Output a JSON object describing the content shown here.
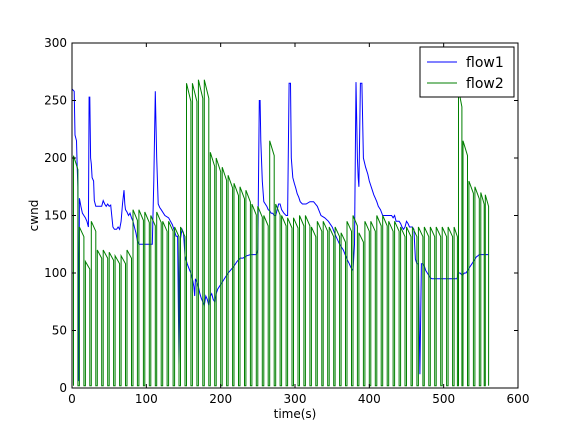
{
  "chart_data": {
    "type": "line",
    "title": "",
    "xlabel": "time(s)",
    "ylabel": "cwnd",
    "xlim": [
      0,
      600
    ],
    "ylim": [
      0,
      300
    ],
    "xticks": [
      0,
      100,
      200,
      300,
      400,
      500,
      600
    ],
    "yticks": [
      0,
      50,
      100,
      150,
      200,
      250,
      300
    ],
    "grid": false,
    "legend_position": "top-right",
    "series": [
      {
        "name": "flow1",
        "color": "#0000ff",
        "points": [
          [
            0,
            260
          ],
          [
            3,
            258
          ],
          [
            4,
            220
          ],
          [
            6,
            215
          ],
          [
            7,
            192
          ],
          [
            8,
            175
          ],
          [
            9,
            6
          ],
          [
            10,
            165
          ],
          [
            12,
            158
          ],
          [
            14,
            152
          ],
          [
            16,
            150
          ],
          [
            18,
            148
          ],
          [
            20,
            145
          ],
          [
            22,
            140
          ],
          [
            23,
            253
          ],
          [
            24,
            253
          ],
          [
            25,
            200
          ],
          [
            26,
            195
          ],
          [
            27,
            183
          ],
          [
            29,
            180
          ],
          [
            30,
            163
          ],
          [
            32,
            158
          ],
          [
            35,
            158
          ],
          [
            40,
            158
          ],
          [
            42,
            163
          ],
          [
            44,
            160
          ],
          [
            46,
            158
          ],
          [
            48,
            160
          ],
          [
            50,
            158
          ],
          [
            52,
            159
          ],
          [
            55,
            140
          ],
          [
            57,
            138
          ],
          [
            60,
            138
          ],
          [
            62,
            140
          ],
          [
            64,
            138
          ],
          [
            66,
            145
          ],
          [
            68,
            160
          ],
          [
            70,
            172
          ],
          [
            71,
            160
          ],
          [
            72,
            155
          ],
          [
            74,
            153
          ],
          [
            76,
            150
          ],
          [
            78,
            152
          ],
          [
            80,
            148
          ],
          [
            82,
            145
          ],
          [
            84,
            140
          ],
          [
            86,
            135
          ],
          [
            88,
            128
          ],
          [
            90,
            125
          ],
          [
            95,
            125
          ],
          [
            100,
            125
          ],
          [
            105,
            125
          ],
          [
            108,
            125
          ],
          [
            110,
            180
          ],
          [
            112,
            258
          ],
          [
            114,
            200
          ],
          [
            116,
            160
          ],
          [
            118,
            157
          ],
          [
            120,
            155
          ],
          [
            125,
            150
          ],
          [
            130,
            148
          ],
          [
            135,
            142
          ],
          [
            140,
            132
          ],
          [
            142,
            132
          ],
          [
            144,
            20
          ],
          [
            146,
            130
          ],
          [
            148,
            138
          ],
          [
            150,
            135
          ],
          [
            152,
            115
          ],
          [
            155,
            108
          ],
          [
            158,
            103
          ],
          [
            160,
            100
          ],
          [
            162,
            95
          ],
          [
            164,
            88
          ],
          [
            165,
            80
          ],
          [
            166,
            95
          ],
          [
            168,
            92
          ],
          [
            170,
            88
          ],
          [
            172,
            82
          ],
          [
            174,
            78
          ],
          [
            176,
            75
          ],
          [
            178,
            72
          ],
          [
            180,
            80
          ],
          [
            182,
            77
          ],
          [
            184,
            72
          ],
          [
            186,
            80
          ],
          [
            188,
            82
          ],
          [
            190,
            77
          ],
          [
            192,
            75
          ],
          [
            194,
            82
          ],
          [
            196,
            86
          ],
          [
            198,
            88
          ],
          [
            200,
            90
          ],
          [
            203,
            93
          ],
          [
            206,
            96
          ],
          [
            210,
            100
          ],
          [
            214,
            103
          ],
          [
            218,
            106
          ],
          [
            222,
            110
          ],
          [
            226,
            113
          ],
          [
            230,
            113
          ],
          [
            235,
            115
          ],
          [
            240,
            116
          ],
          [
            245,
            116
          ],
          [
            248,
            116
          ],
          [
            250,
            120
          ],
          [
            252,
            250
          ],
          [
            253,
            250
          ],
          [
            254,
            215
          ],
          [
            256,
            180
          ],
          [
            258,
            162
          ],
          [
            260,
            160
          ],
          [
            262,
            158
          ],
          [
            264,
            155
          ],
          [
            266,
            154
          ],
          [
            268,
            152
          ],
          [
            270,
            152
          ],
          [
            272,
            150
          ],
          [
            274,
            150
          ],
          [
            276,
            155
          ],
          [
            278,
            160
          ],
          [
            280,
            160
          ],
          [
            282,
            155
          ],
          [
            285,
            152
          ],
          [
            288,
            150
          ],
          [
            290,
            150
          ],
          [
            292,
            265
          ],
          [
            294,
            265
          ],
          [
            295,
            200
          ],
          [
            297,
            183
          ],
          [
            299,
            178
          ],
          [
            301,
            174
          ],
          [
            303,
            169
          ],
          [
            305,
            166
          ],
          [
            307,
            162
          ],
          [
            310,
            160
          ],
          [
            315,
            160
          ],
          [
            320,
            162
          ],
          [
            325,
            162
          ],
          [
            330,
            158
          ],
          [
            335,
            150
          ],
          [
            340,
            148
          ],
          [
            345,
            145
          ],
          [
            350,
            140
          ],
          [
            355,
            132
          ],
          [
            360,
            125
          ],
          [
            365,
            120
          ],
          [
            370,
            112
          ],
          [
            373,
            108
          ],
          [
            375,
            105
          ],
          [
            377,
            103
          ],
          [
            378,
            102
          ],
          [
            380,
            125
          ],
          [
            382,
            266
          ],
          [
            384,
            200
          ],
          [
            385,
            183
          ],
          [
            386,
            175
          ],
          [
            388,
            265
          ],
          [
            389,
            265
          ],
          [
            390,
            265
          ],
          [
            392,
            200
          ],
          [
            395,
            192
          ],
          [
            398,
            186
          ],
          [
            400,
            180
          ],
          [
            402,
            176
          ],
          [
            404,
            172
          ],
          [
            406,
            168
          ],
          [
            408,
            165
          ],
          [
            410,
            162
          ],
          [
            412,
            158
          ],
          [
            415,
            155
          ],
          [
            418,
            150
          ],
          [
            420,
            150
          ],
          [
            425,
            150
          ],
          [
            428,
            150
          ],
          [
            430,
            150
          ],
          [
            432,
            148
          ],
          [
            434,
            150
          ],
          [
            436,
            145
          ],
          [
            438,
            145
          ],
          [
            440,
            145
          ],
          [
            442,
            143
          ],
          [
            444,
            140
          ],
          [
            446,
            138
          ],
          [
            448,
            140
          ],
          [
            450,
            145
          ],
          [
            452,
            143
          ],
          [
            454,
            140
          ],
          [
            456,
            140
          ],
          [
            458,
            140
          ],
          [
            460,
            138
          ],
          [
            462,
            112
          ],
          [
            464,
            108
          ],
          [
            466,
            108
          ],
          [
            468,
            12
          ],
          [
            470,
            108
          ],
          [
            472,
            108
          ],
          [
            474,
            106
          ],
          [
            476,
            102
          ],
          [
            478,
            100
          ],
          [
            480,
            98
          ],
          [
            482,
            96
          ],
          [
            484,
            95
          ],
          [
            486,
            95
          ],
          [
            488,
            95
          ],
          [
            490,
            95
          ],
          [
            492,
            95
          ],
          [
            494,
            95
          ],
          [
            496,
            95
          ],
          [
            498,
            95
          ],
          [
            500,
            95
          ],
          [
            502,
            95
          ],
          [
            504,
            95
          ],
          [
            506,
            95
          ],
          [
            508,
            95
          ],
          [
            510,
            95
          ],
          [
            512,
            95
          ],
          [
            514,
            95
          ],
          [
            516,
            95
          ],
          [
            518,
            95
          ],
          [
            520,
            100
          ],
          [
            522,
            100
          ],
          [
            525,
            98
          ],
          [
            528,
            100
          ],
          [
            530,
            100
          ],
          [
            532,
            102
          ],
          [
            534,
            104
          ],
          [
            536,
            106
          ],
          [
            538,
            108
          ],
          [
            540,
            110
          ],
          [
            542,
            112
          ],
          [
            544,
            114
          ],
          [
            546,
            115
          ],
          [
            548,
            116
          ],
          [
            550,
            116
          ],
          [
            552,
            116
          ],
          [
            554,
            116
          ],
          [
            556,
            116
          ],
          [
            558,
            116
          ],
          [
            560,
            116
          ]
        ]
      },
      {
        "name": "flow2",
        "color": "#007f00",
        "baseline": 2,
        "teeth": [
          [
            2,
            202
          ],
          [
            10,
            140
          ],
          [
            18,
            110
          ],
          [
            26,
            145
          ],
          [
            34,
            120
          ],
          [
            42,
            120
          ],
          [
            50,
            118
          ],
          [
            58,
            115
          ],
          [
            66,
            115
          ],
          [
            74,
            120
          ],
          [
            82,
            155
          ],
          [
            90,
            155
          ],
          [
            98,
            153
          ],
          [
            106,
            150
          ],
          [
            114,
            153
          ],
          [
            122,
            145
          ],
          [
            130,
            145
          ],
          [
            138,
            140
          ],
          [
            146,
            140
          ],
          [
            154,
            265
          ],
          [
            162,
            265
          ],
          [
            170,
            268
          ],
          [
            178,
            268
          ],
          [
            186,
            205
          ],
          [
            194,
            200
          ],
          [
            202,
            192
          ],
          [
            210,
            185
          ],
          [
            218,
            178
          ],
          [
            226,
            175
          ],
          [
            234,
            172
          ],
          [
            242,
            160
          ],
          [
            250,
            158
          ],
          [
            258,
            150
          ],
          [
            266,
            215
          ],
          [
            274,
            160
          ],
          [
            282,
            150
          ],
          [
            290,
            148
          ],
          [
            298,
            148
          ],
          [
            306,
            150
          ],
          [
            314,
            150
          ],
          [
            322,
            140
          ],
          [
            330,
            145
          ],
          [
            338,
            145
          ],
          [
            346,
            140
          ],
          [
            354,
            140
          ],
          [
            362,
            135
          ],
          [
            370,
            145
          ],
          [
            378,
            150
          ],
          [
            386,
            135
          ],
          [
            394,
            145
          ],
          [
            402,
            145
          ],
          [
            410,
            150
          ],
          [
            418,
            150
          ],
          [
            426,
            145
          ],
          [
            434,
            145
          ],
          [
            442,
            140
          ],
          [
            450,
            140
          ],
          [
            458,
            140
          ],
          [
            466,
            140
          ],
          [
            474,
            140
          ],
          [
            482,
            140
          ],
          [
            490,
            140
          ],
          [
            498,
            140
          ],
          [
            506,
            140
          ],
          [
            514,
            140
          ],
          [
            520,
            260
          ],
          [
            526,
            215
          ],
          [
            534,
            180
          ],
          [
            542,
            175
          ],
          [
            550,
            170
          ],
          [
            556,
            168
          ]
        ],
        "points": []
      }
    ]
  }
}
